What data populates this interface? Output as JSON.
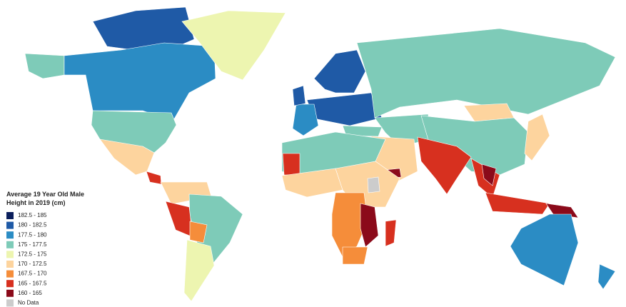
{
  "legend": {
    "title_lines": [
      "Average 19 Year Old Male",
      "Height in 2019 (cm)"
    ],
    "items": [
      {
        "label": "182.5 - 185",
        "color": "#0b1f5c"
      },
      {
        "label": "180 - 182.5",
        "color": "#1f5aa6"
      },
      {
        "label": "177.5 - 180",
        "color": "#2b8cc4"
      },
      {
        "label": "175 - 177.5",
        "color": "#7ecbb8"
      },
      {
        "label": "172.5 - 175",
        "color": "#edf5b0"
      },
      {
        "label": "170 - 172.5",
        "color": "#fdd49e"
      },
      {
        "label": "167.5 - 170",
        "color": "#f58d3a"
      },
      {
        "label": "165 - 167.5",
        "color": "#d7301f"
      },
      {
        "label": "160 - 165",
        "color": "#8b0a1a"
      },
      {
        "label": "No Data",
        "color": "#cccccc"
      }
    ]
  }
}
